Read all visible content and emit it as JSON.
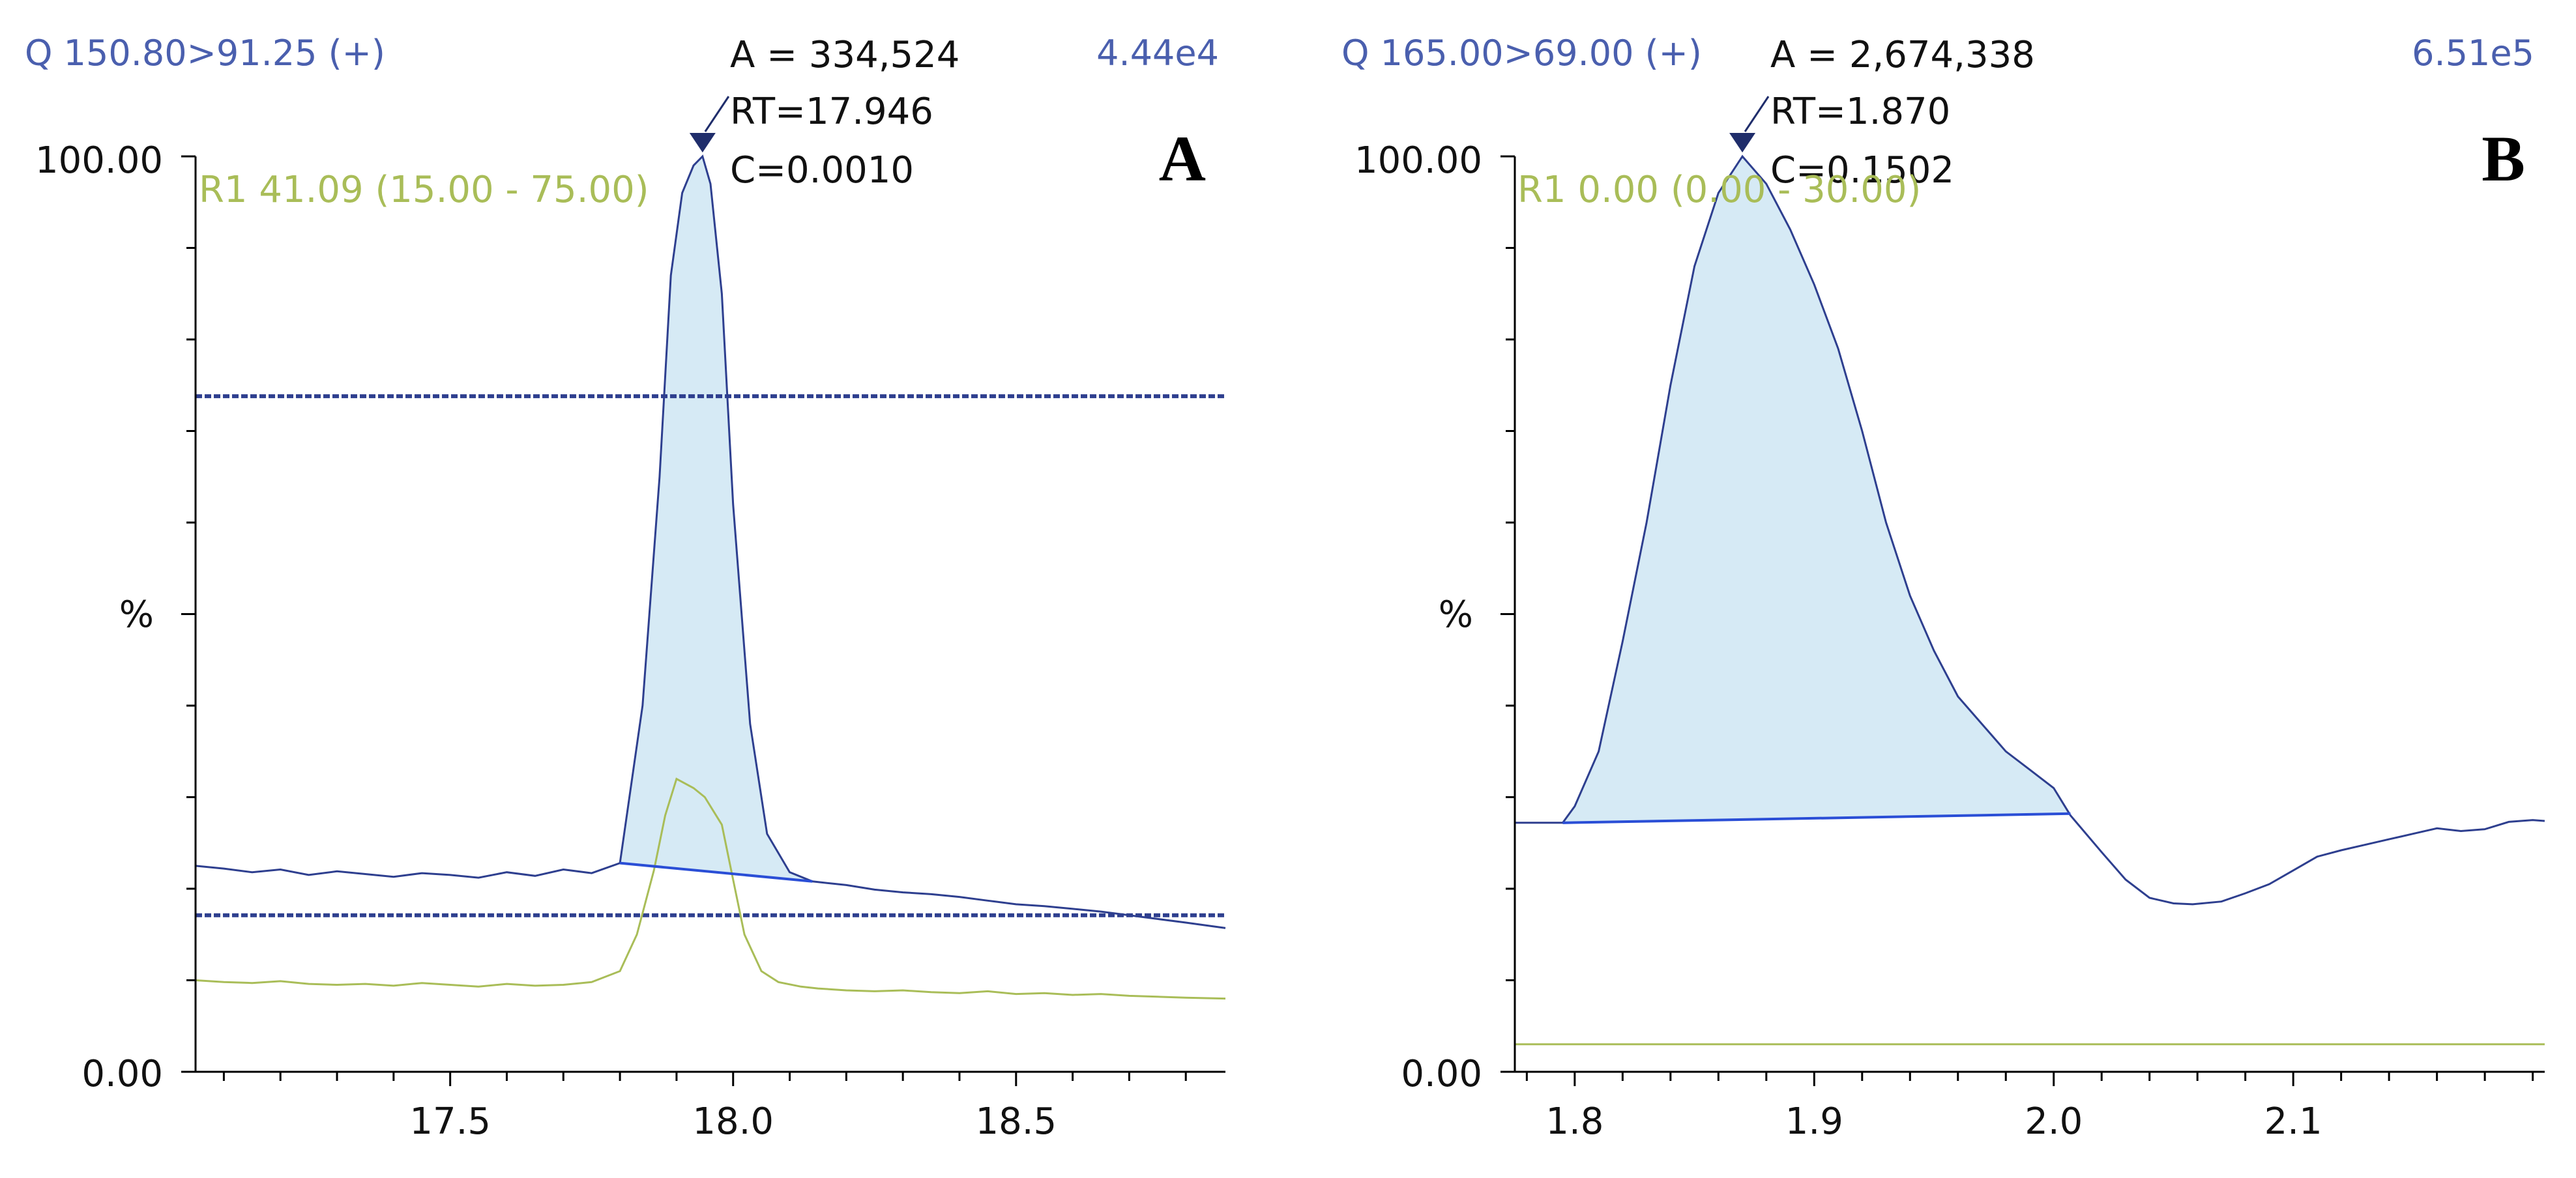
{
  "chart_data": [
    {
      "type": "line",
      "panel_letter": "A",
      "channel": "Q 150.80>91.25 (+)",
      "max_intensity": "4.44e4",
      "peak": {
        "area_label": "A  = 334,524",
        "rt_label": "RT=17.946",
        "conc_label": "C=0.0010",
        "rt": 17.946
      },
      "ratio_label": "R1 41.09 (15.00 - 75.00)",
      "ylabel": "%",
      "y_ticks": [
        "100.00",
        "0.00"
      ],
      "xlim": [
        17.05,
        18.87
      ],
      "ylim": [
        0,
        100
      ],
      "x_ticks": [
        17.5,
        18.0,
        18.5
      ],
      "x_tick_labels": [
        "17.5",
        "18.0",
        "18.5"
      ],
      "minor_step": 0.1,
      "limit_lines": [
        73.8,
        17.1
      ],
      "trace": {
        "x": [
          17.05,
          17.1,
          17.15,
          17.2,
          17.25,
          17.3,
          17.35,
          17.4,
          17.45,
          17.5,
          17.55,
          17.6,
          17.65,
          17.7,
          17.75,
          17.8,
          17.84,
          17.87,
          17.89,
          17.91,
          17.93,
          17.946,
          17.96,
          17.98,
          18.0,
          18.03,
          18.06,
          18.1,
          18.14,
          18.2,
          18.25,
          18.3,
          18.35,
          18.4,
          18.45,
          18.5,
          18.55,
          18.6,
          18.65,
          18.7,
          18.75,
          18.8,
          18.87
        ],
        "y": [
          22.5,
          22.2,
          21.8,
          22.1,
          21.5,
          21.9,
          21.6,
          21.3,
          21.7,
          21.5,
          21.2,
          21.8,
          21.4,
          22.1,
          21.7,
          22.8,
          40,
          65,
          87,
          96,
          99,
          100,
          97,
          85,
          62,
          38,
          26,
          21.8,
          20.8,
          20.4,
          19.9,
          19.6,
          19.4,
          19.1,
          18.7,
          18.3,
          18.1,
          17.8,
          17.5,
          17.1,
          16.7,
          16.3,
          15.7
        ]
      },
      "confirm_trace": {
        "x": [
          17.05,
          17.1,
          17.15,
          17.2,
          17.25,
          17.3,
          17.35,
          17.4,
          17.45,
          17.5,
          17.55,
          17.6,
          17.65,
          17.7,
          17.75,
          17.8,
          17.83,
          17.86,
          17.88,
          17.9,
          17.93,
          17.95,
          17.98,
          18.0,
          18.02,
          18.05,
          18.08,
          18.12,
          18.15,
          18.2,
          18.25,
          18.3,
          18.35,
          18.4,
          18.45,
          18.5,
          18.55,
          18.6,
          18.65,
          18.7,
          18.75,
          18.8,
          18.87
        ],
        "y": [
          10,
          9.8,
          9.7,
          9.9,
          9.6,
          9.5,
          9.6,
          9.4,
          9.7,
          9.5,
          9.3,
          9.6,
          9.4,
          9.5,
          9.8,
          11,
          15,
          22,
          28,
          32,
          31,
          30,
          27,
          21,
          15,
          11,
          9.8,
          9.3,
          9.1,
          8.9,
          8.8,
          8.9,
          8.7,
          8.6,
          8.8,
          8.5,
          8.6,
          8.4,
          8.5,
          8.3,
          8.2,
          8.1,
          8.0
        ]
      },
      "baseline": {
        "x": [
          17.8,
          18.14
        ],
        "y": [
          22.8,
          20.8
        ]
      },
      "area": {
        "x_start": 17.8,
        "x_end": 18.14
      }
    },
    {
      "type": "line",
      "panel_letter": "B",
      "channel": "Q 165.00>69.00 (+)",
      "max_intensity": "6.51e5",
      "peak": {
        "area_label": "A = 2,674,338",
        "rt_label": "RT=1.870",
        "conc_label": "C=0.1502",
        "rt": 1.87
      },
      "ratio_label": "R1 0.00 (0.00 - 30.00)",
      "ylabel": "%",
      "y_ticks": [
        "100.00",
        "0.00"
      ],
      "xlim": [
        1.775,
        2.205
      ],
      "ylim": [
        0,
        100
      ],
      "x_ticks": [
        1.8,
        1.9,
        2.0,
        2.1
      ],
      "x_tick_labels": [
        "1.8",
        "1.9",
        "2.0",
        "2.1"
      ],
      "minor_step": 0.02,
      "limit_lines": [],
      "trace": {
        "x": [
          1.775,
          1.795,
          1.8,
          1.81,
          1.82,
          1.83,
          1.84,
          1.85,
          1.86,
          1.87,
          1.88,
          1.89,
          1.9,
          1.91,
          1.92,
          1.93,
          1.94,
          1.95,
          1.96,
          1.97,
          1.98,
          1.99,
          2.0,
          2.007,
          2.02,
          2.03,
          2.04,
          2.05,
          2.058,
          2.07,
          2.08,
          2.09,
          2.1,
          2.11,
          2.12,
          2.13,
          2.14,
          2.15,
          2.16,
          2.17,
          2.18,
          2.19,
          2.2,
          2.205
        ],
        "y": [
          27.2,
          27.2,
          29,
          35,
          47,
          60,
          75,
          88,
          96,
          100,
          97,
          92,
          86,
          79,
          70,
          60,
          52,
          46,
          41,
          38,
          35,
          33,
          31,
          28,
          24,
          21,
          19,
          18.4,
          18.3,
          18.6,
          19.5,
          20.5,
          22,
          23.5,
          24.2,
          24.8,
          25.4,
          26,
          26.6,
          26.3,
          26.5,
          27.3,
          27.5,
          27.4
        ]
      },
      "confirm_trace": {
        "x": [
          1.775,
          2.205
        ],
        "y": [
          3.0,
          3.0
        ]
      },
      "baseline": {
        "x": [
          1.795,
          2.007
        ],
        "y": [
          27.2,
          28.2
        ]
      },
      "area": {
        "x_start": 1.795,
        "x_end": 2.007
      }
    }
  ]
}
